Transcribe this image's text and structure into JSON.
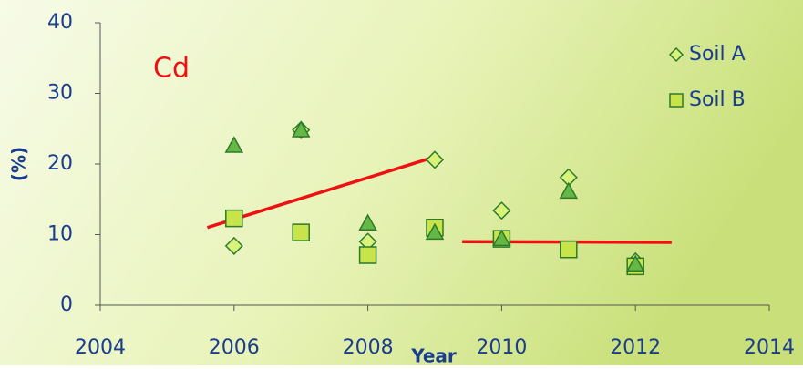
{
  "chart_data": {
    "type": "scatter",
    "annotation": "Cd",
    "x_label": "Year",
    "y_label": "(%)",
    "xlim": [
      2004,
      2014
    ],
    "xticks": [
      2004,
      2006,
      2008,
      2010,
      2012,
      2014
    ],
    "ylim": [
      0,
      40
    ],
    "yticks": [
      0,
      10,
      20,
      30,
      40
    ],
    "legend": "upper right",
    "series": [
      {
        "name": "Soil A",
        "marker": "diamond",
        "color": "#d9f27a",
        "x": [
          2006,
          2007,
          2008,
          2009,
          2010,
          2011,
          2012
        ],
        "values": [
          8.4,
          24.8,
          9.0,
          20.6,
          13.4,
          18.1,
          6.2
        ]
      },
      {
        "name": "Soil B",
        "marker": "square",
        "color": "#c8e44a",
        "x": [
          2006,
          2007,
          2008,
          2009,
          2010,
          2011,
          2012
        ],
        "values": [
          12.3,
          10.3,
          7.1,
          11.0,
          9.4,
          7.9,
          5.5
        ]
      },
      {
        "marker": "triangle",
        "color": "#66b846",
        "x": [
          2006,
          2007,
          2008,
          2009,
          2010,
          2011,
          2012
        ],
        "values": [
          22.6,
          24.8,
          11.6,
          10.3,
          9.4,
          16.1,
          5.8
        ]
      }
    ],
    "trend_lines": [
      {
        "color": "#ee1111",
        "x": [
          2005.6,
          2008.93
        ],
        "values": [
          11.0,
          20.8
        ]
      },
      {
        "color": "#ee1111",
        "x": [
          2009.41,
          2012.54
        ],
        "values": [
          9.0,
          8.9
        ]
      }
    ]
  }
}
